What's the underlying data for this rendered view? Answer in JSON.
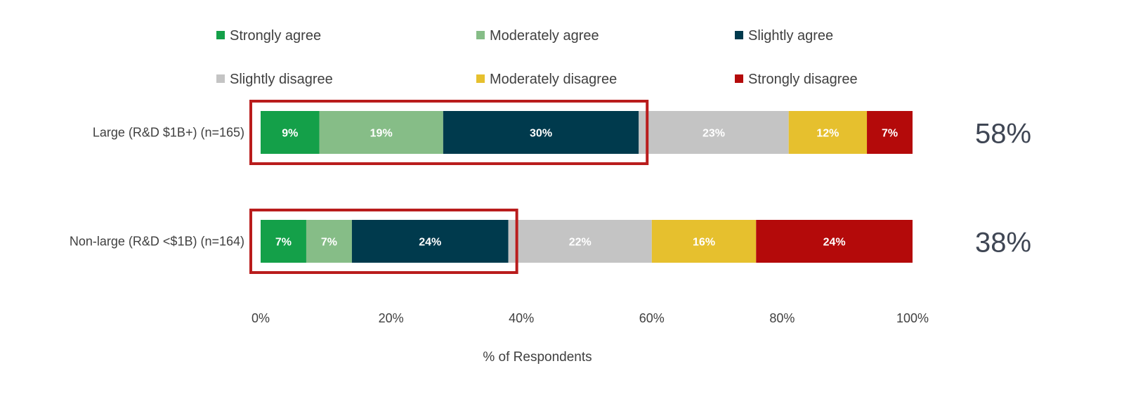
{
  "chart_data": {
    "type": "bar",
    "orientation": "horizontal",
    "stacked": true,
    "xlabel": "% of Respondents",
    "xlim": [
      0,
      100
    ],
    "x_ticks": [
      "0%",
      "20%",
      "40%",
      "60%",
      "80%",
      "100%"
    ],
    "categories": [
      "Large (R&D $1B+) (n=165)",
      "Non-large (R&D <$1B) (n=164)"
    ],
    "series": [
      {
        "name": "Strongly agree",
        "color": "#14a049",
        "values": [
          9,
          7
        ],
        "labels": [
          "9%",
          "7%"
        ]
      },
      {
        "name": "Moderately agree",
        "color": "#86bd87",
        "values": [
          19,
          7
        ],
        "labels": [
          "19%",
          "7%"
        ]
      },
      {
        "name": "Slightly agree",
        "color": "#003a4d",
        "values": [
          30,
          24
        ],
        "labels": [
          "30%",
          "24%"
        ]
      },
      {
        "name": "Slightly disagree",
        "color": "#c4c4c4",
        "values": [
          23,
          22
        ],
        "labels": [
          "23%",
          "22%"
        ]
      },
      {
        "name": "Moderately disagree",
        "color": "#e6c02e",
        "values": [
          12,
          16
        ],
        "labels": [
          "12%",
          "16%"
        ]
      },
      {
        "name": "Strongly disagree",
        "color": "#b40a0a",
        "values": [
          7,
          24
        ],
        "labels": [
          "7%",
          "24%"
        ]
      }
    ],
    "totals_agree": [
      "58%",
      "38%"
    ],
    "highlight_color": "#b91c1c",
    "legend_position": "top",
    "grid": false
  }
}
